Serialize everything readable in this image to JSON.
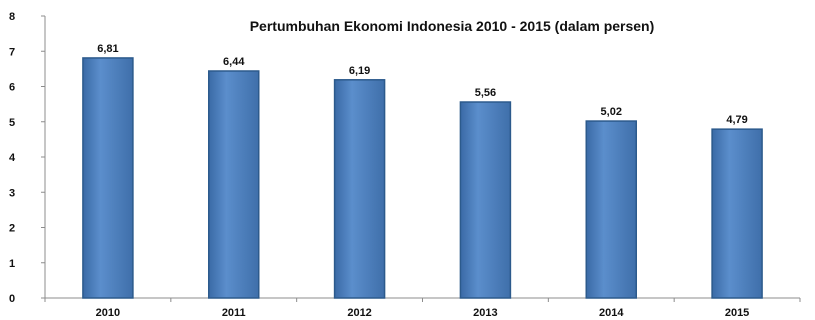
{
  "chart_data": {
    "type": "bar",
    "title": "Pertumbuhan Ekonomi  Indonesia  2010 - 2015 (dalam persen)",
    "categories": [
      "2010",
      "2011",
      "2012",
      "2013",
      "2014",
      "2015"
    ],
    "values": [
      6.81,
      6.44,
      6.19,
      5.56,
      5.02,
      4.79
    ],
    "data_labels": [
      "6,81",
      "6,44",
      "6,19",
      "5,56",
      "5,02",
      "4,79"
    ],
    "xlabel": "",
    "ylabel": "",
    "ylim": [
      0,
      8
    ],
    "yticks": [
      0,
      1,
      2,
      3,
      4,
      5,
      6,
      7,
      8
    ],
    "grid": false,
    "legend": "none",
    "bar_color": "#4F81BD",
    "bar_edge_color": "#2C5A8C"
  }
}
